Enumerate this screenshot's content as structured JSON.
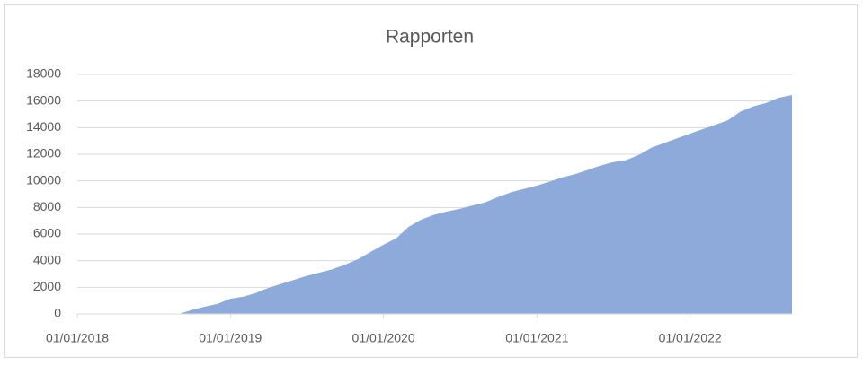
{
  "chart_data": {
    "type": "area",
    "title": "Rapporten",
    "x": [
      "01/09/2018",
      "01/10/2018",
      "01/11/2018",
      "01/12/2018",
      "01/01/2019",
      "01/02/2019",
      "01/03/2019",
      "01/04/2019",
      "01/05/2019",
      "01/06/2019",
      "01/07/2019",
      "01/08/2019",
      "01/09/2019",
      "01/10/2019",
      "01/11/2019",
      "01/12/2019",
      "01/01/2020",
      "01/02/2020",
      "01/03/2020",
      "01/04/2020",
      "01/05/2020",
      "01/06/2020",
      "01/07/2020",
      "01/08/2020",
      "01/09/2020",
      "01/10/2020",
      "01/11/2020",
      "01/12/2020",
      "01/01/2021",
      "01/02/2021",
      "01/03/2021",
      "01/04/2021",
      "01/05/2021",
      "01/06/2021",
      "01/07/2021",
      "01/08/2021",
      "01/09/2021",
      "01/10/2021",
      "01/11/2021",
      "01/12/2021",
      "01/01/2022",
      "01/02/2022",
      "01/03/2022",
      "01/04/2022",
      "01/05/2022",
      "01/06/2022",
      "01/07/2022",
      "01/08/2022",
      "01/09/2022"
    ],
    "values": [
      0,
      300,
      550,
      750,
      1150,
      1300,
      1550,
      1950,
      2250,
      2550,
      2850,
      3100,
      3350,
      3700,
      4100,
      4650,
      5200,
      5700,
      6550,
      7100,
      7450,
      7700,
      7900,
      8150,
      8400,
      8800,
      9150,
      9400,
      9650,
      9950,
      10250,
      10500,
      10800,
      11150,
      11400,
      11550,
      11950,
      12500,
      12850,
      13200,
      13550,
      13900,
      14200,
      14550,
      15200,
      15600,
      15850,
      16250,
      16450
    ],
    "color": "#8eaadb",
    "xlim": [
      "01/01/2018",
      "01/09/2022"
    ],
    "xticks": [
      "01/01/2018",
      "01/01/2019",
      "01/01/2020",
      "01/01/2021",
      "01/01/2022"
    ],
    "ylim": [
      0,
      18000
    ],
    "yticks": [
      0,
      2000,
      4000,
      6000,
      8000,
      10000,
      12000,
      14000,
      16000,
      18000
    ],
    "grid": true
  }
}
